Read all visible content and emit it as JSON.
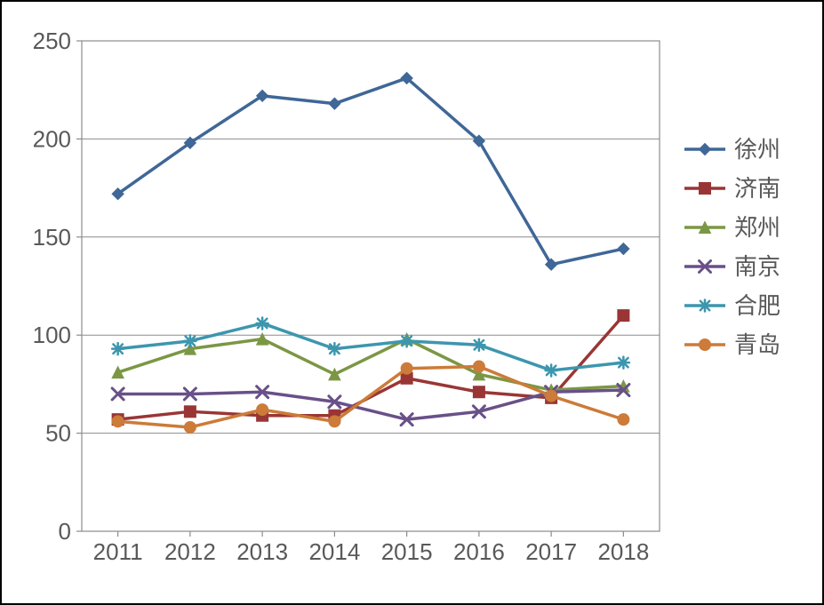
{
  "chart": {
    "type": "line",
    "background_color": "#ffffff",
    "plot_border_color": "#8c8c8c",
    "plot_border_width": 1.2,
    "grid_color": "#8c8c8c",
    "grid_width": 1,
    "categories": [
      "2011",
      "2012",
      "2013",
      "2014",
      "2015",
      "2016",
      "2017",
      "2018"
    ],
    "ylim": [
      0,
      250
    ],
    "ytick_step": 50,
    "yticks": [
      0,
      50,
      100,
      150,
      200,
      250
    ],
    "tick_label_fontsize": 26,
    "tick_label_color": "#595959",
    "tick_mark_length": 6,
    "line_width": 3.5,
    "marker_size": 6.5,
    "series": [
      {
        "name": "徐州",
        "color": "#3f6797",
        "marker": "diamond",
        "values": [
          172,
          198,
          222,
          218,
          231,
          199,
          136,
          144
        ]
      },
      {
        "name": "济南",
        "color": "#993635",
        "marker": "square",
        "values": [
          57,
          61,
          59,
          59,
          78,
          71,
          68,
          110
        ]
      },
      {
        "name": "郑州",
        "color": "#7b9744",
        "marker": "triangle",
        "values": [
          81,
          93,
          98,
          80,
          98,
          80,
          72,
          74
        ]
      },
      {
        "name": "南京",
        "color": "#695088",
        "marker": "x",
        "values": [
          70,
          70,
          71,
          66,
          57,
          61,
          71,
          72
        ]
      },
      {
        "name": "合肥",
        "color": "#3d96ae",
        "marker": "star",
        "values": [
          93,
          97,
          106,
          93,
          97,
          95,
          82,
          86
        ]
      },
      {
        "name": "青岛",
        "color": "#cc7b38",
        "marker": "circle",
        "values": [
          56,
          53,
          62,
          56,
          83,
          84,
          69,
          57
        ]
      }
    ],
    "legend": {
      "items": [
        "徐州",
        "济南",
        "郑州",
        "南京",
        "合肥",
        "青岛"
      ],
      "fontsize": 26,
      "text_color": "#595959",
      "line_length": 46,
      "row_gap": 44
    }
  }
}
